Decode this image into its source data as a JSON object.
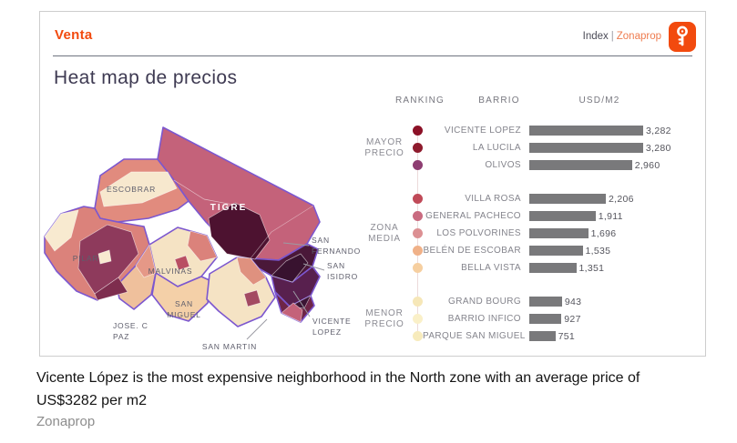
{
  "header": {
    "title": "Venta",
    "index_label": "Index",
    "separator": "|",
    "brand": "Zonaprop",
    "accent_color": "#F24A0E"
  },
  "card": {
    "title": "Heat map de precios"
  },
  "chart_data": {
    "type": "bar",
    "orientation": "horizontal",
    "title": "Heat map de precios",
    "unit": "USD/M2",
    "columns": [
      "RANKING",
      "BARRIO",
      "USD/M2"
    ],
    "max_value": 3282,
    "bar_color": "#79797b",
    "legend_position": "left-dot-scale",
    "groups": [
      {
        "label": "MAYOR PRECIO",
        "rows": [
          {
            "barrio": "VICENTE LOPEZ",
            "value": 3282,
            "value_label": "3,282",
            "dot_color": "#8C1127"
          },
          {
            "barrio": "LA LUCILA",
            "value": 3280,
            "value_label": "3,280",
            "dot_color": "#8E1B2D"
          },
          {
            "barrio": "OLIVOS",
            "value": 2960,
            "value_label": "2,960",
            "dot_color": "#8E3E72"
          }
        ]
      },
      {
        "label": "ZONA MEDIA",
        "rows": [
          {
            "barrio": "VILLA ROSA",
            "value": 2206,
            "value_label": "2,206",
            "dot_color": "#C04A58"
          },
          {
            "barrio": "GENERAL PACHECO",
            "value": 1911,
            "value_label": "1,911",
            "dot_color": "#C96B80"
          },
          {
            "barrio": "LOS POLVORINES",
            "value": 1696,
            "value_label": "1,696",
            "dot_color": "#DC9093"
          },
          {
            "barrio": "BELÉN DE ESCOBAR",
            "value": 1535,
            "value_label": "1,535",
            "dot_color": "#F0B188"
          },
          {
            "barrio": "BELLA VISTA",
            "value": 1351,
            "value_label": "1,351",
            "dot_color": "#F6CFA0"
          }
        ]
      },
      {
        "label": "MENOR PRECIO",
        "rows": [
          {
            "barrio": "GRAND BOURG",
            "value": 943,
            "value_label": "943",
            "dot_color": "#F6E7B8"
          },
          {
            "barrio": "BARRIO INFICO",
            "value": 927,
            "value_label": "927",
            "dot_color": "#FAF0C8"
          },
          {
            "barrio": "PARQUE SAN MIGUEL",
            "value": 751,
            "value_label": "751",
            "dot_color": "#F7EBBC"
          }
        ]
      }
    ]
  },
  "map": {
    "border_color": "#7C57CF",
    "scale_low_color": "#F8EAD0",
    "scale_high_color": "#4D1230",
    "labels": {
      "escobar": "ESCOBRAR",
      "tigre": "TIGRE",
      "pilar": "PILAR",
      "malvinas": "MALVINAS",
      "san_miguel_1": "SAN",
      "san_miguel_2": "MIGUEL",
      "jose_c_paz_1": "JOSE. C",
      "jose_c_paz_2": "PAZ",
      "san_martin": "SAN MARTIN",
      "san_fernando_1": "SAN",
      "san_fernando_2": "FERNANDO",
      "san_isidro_1": "SAN",
      "san_isidro_2": "ISIDRO",
      "vicente_lopez_1": "VICENTE",
      "vicente_lopez_2": "LOPEZ"
    }
  },
  "caption": {
    "text": "Vicente López is the most expensive neighborhood in the North zone with an average price of US$3282 per m2",
    "source": "Zonaprop"
  }
}
